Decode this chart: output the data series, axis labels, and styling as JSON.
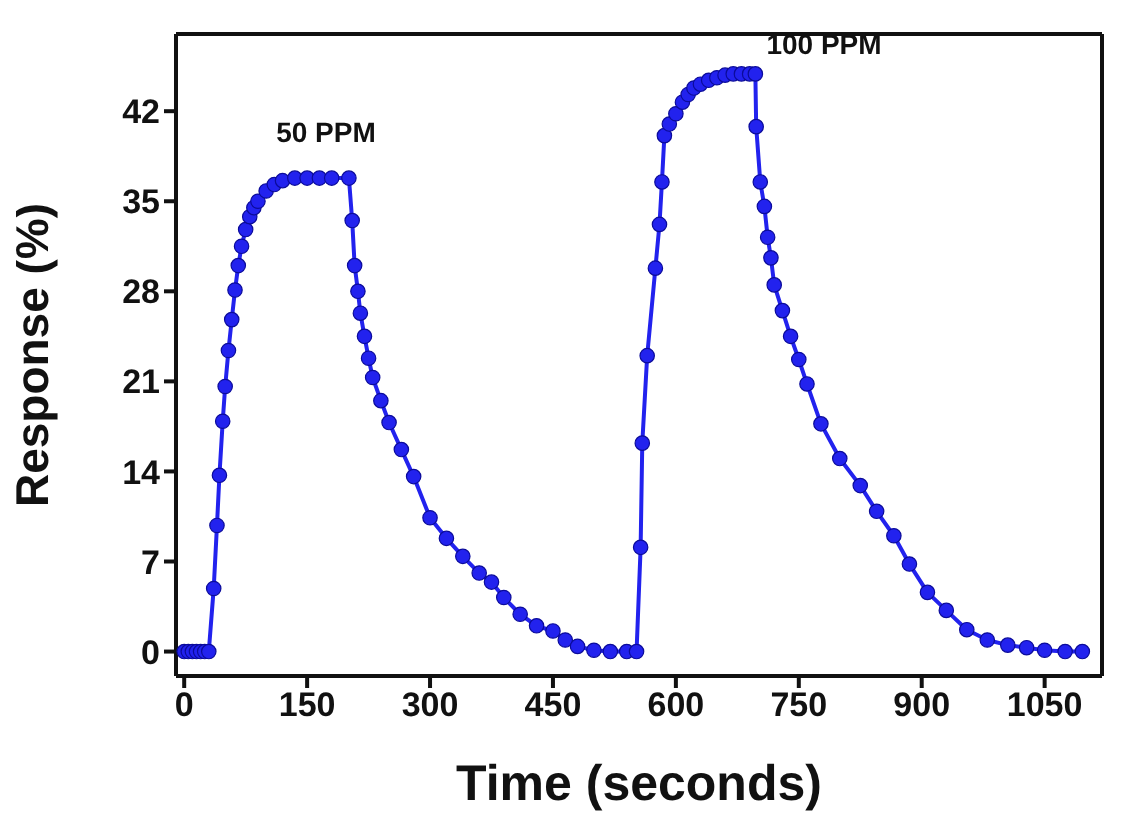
{
  "chart_data": {
    "type": "line",
    "xlabel": "Time (seconds)",
    "ylabel": "Response (%)",
    "xlim": [
      -10,
      1120
    ],
    "ylim": [
      -1.9,
      48
    ],
    "xticks": [
      0,
      150,
      300,
      450,
      600,
      750,
      900,
      1050
    ],
    "yticks": [
      0,
      7,
      14,
      21,
      28,
      35,
      42
    ],
    "marker": "circle",
    "line_style": "solid",
    "annotations": [
      "50 PPM",
      "100 PPM"
    ],
    "series": [
      {
        "color": "#2222ee",
        "x": [
          0,
          5,
          10,
          15,
          20,
          25,
          30,
          36,
          40,
          43,
          47,
          50,
          54,
          58,
          62,
          66,
          70,
          75,
          80,
          85,
          90,
          100,
          110,
          120,
          135,
          150,
          165,
          180,
          201,
          205,
          208,
          212,
          215,
          220,
          225,
          230,
          240,
          250,
          265,
          280,
          300,
          320,
          340,
          360,
          375,
          390,
          410,
          430,
          450,
          465,
          480,
          500,
          520,
          540,
          552,
          557,
          559,
          565,
          575,
          580,
          583,
          586,
          592,
          600,
          608,
          615,
          622,
          630,
          640,
          650,
          660,
          670,
          680,
          690,
          697,
          698,
          703,
          708,
          712,
          716,
          720,
          730,
          740,
          750,
          760,
          777,
          800,
          825,
          845,
          866,
          885,
          907,
          930,
          955,
          980,
          1005,
          1028,
          1050,
          1075,
          1096
        ],
        "values": [
          0,
          0,
          0,
          0,
          0,
          0,
          0,
          4.9,
          9.8,
          13.7,
          17.9,
          20.6,
          23.4,
          25.8,
          28.1,
          30.0,
          31.5,
          32.8,
          33.8,
          34.5,
          35.0,
          35.8,
          36.3,
          36.6,
          36.8,
          36.8,
          36.8,
          36.8,
          36.8,
          33.5,
          30.0,
          28.0,
          26.3,
          24.5,
          22.8,
          21.3,
          19.5,
          17.8,
          15.7,
          13.6,
          10.4,
          8.8,
          7.4,
          6.1,
          5.4,
          4.2,
          2.9,
          2.0,
          1.6,
          0.9,
          0.4,
          0.1,
          0,
          0,
          0,
          8.1,
          16.2,
          23.0,
          29.8,
          33.2,
          36.5,
          40.1,
          41.0,
          41.8,
          42.7,
          43.3,
          43.8,
          44.1,
          44.4,
          44.6,
          44.8,
          44.9,
          44.9,
          44.9,
          44.9,
          40.8,
          36.5,
          34.6,
          32.2,
          30.6,
          28.5,
          26.5,
          24.5,
          22.7,
          20.8,
          17.7,
          15.0,
          12.9,
          10.9,
          9.0,
          6.8,
          4.6,
          3.2,
          1.7,
          0.9,
          0.5,
          0.3,
          0.1,
          0,
          0
        ]
      }
    ]
  }
}
